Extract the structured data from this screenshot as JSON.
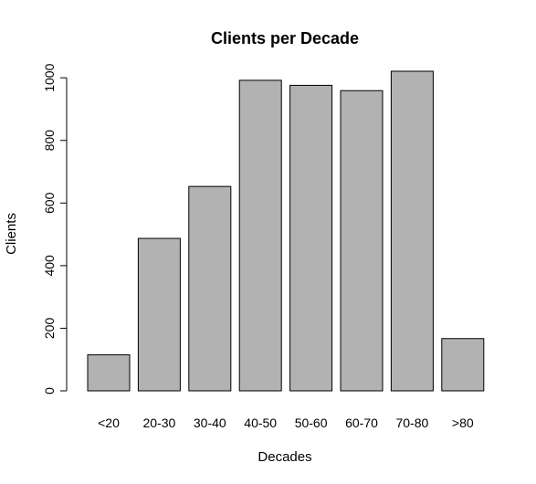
{
  "chart_data": {
    "type": "bar",
    "title": "Clients per Decade",
    "xlabel": "Decades",
    "ylabel": "Clients",
    "categories": [
      "<20",
      "20-30",
      "30-40",
      "40-50",
      "50-60",
      "60-70",
      "70-80",
      ">80"
    ],
    "values": [
      115,
      487,
      653,
      992,
      976,
      959,
      1021,
      167
    ],
    "ylim": [
      0,
      1021
    ],
    "yticks": [
      0,
      200,
      400,
      600,
      800,
      1000
    ],
    "grid": false,
    "bar_color": "#b2b2b2",
    "border_color": "#000000"
  }
}
